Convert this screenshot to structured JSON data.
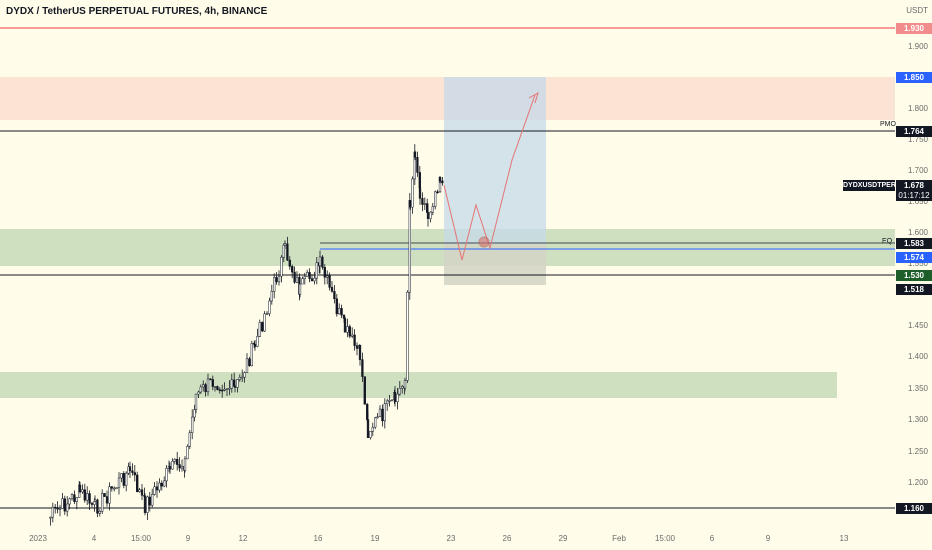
{
  "header": {
    "title": "DYDX / TetherUS PERPETUAL FUTURES, 4h, BINANCE"
  },
  "price_axis": {
    "currency": "USDT",
    "ticks": [
      "1.900",
      "1.800",
      "1.750",
      "1.700",
      "1.650",
      "1.600",
      "1.550",
      "1.450",
      "1.400",
      "1.350",
      "1.300",
      "1.250",
      "1.200"
    ],
    "tags": {
      "red_line": "1.930",
      "blue_box": "1.850",
      "pmo_line": "1.764",
      "last_price": "1.678",
      "countdown": "01:17:12",
      "eq_line": "1.583",
      "blue_line": "1.574",
      "green_tag": "1.530",
      "black_line": "1.518",
      "bottom_line": "1.160"
    }
  },
  "symbol_tag": "DYDXUSDTPERP",
  "line_labels": {
    "pmo": "PMO",
    "eq": "EQ"
  },
  "time_axis": [
    "2023",
    "4",
    "15:00",
    "9",
    "12",
    "16",
    "19",
    "23",
    "26",
    "29",
    "Feb",
    "15:00",
    "6",
    "9",
    "13"
  ],
  "colors": {
    "background": "#fffde9",
    "supply_zone": "#fce4d4",
    "demand_zone": "#cfe0c0",
    "up_candle": "#ffffff",
    "down_candle": "#131722",
    "projection": "#e57373",
    "rr_box": "#c6d9ea",
    "rr_stop": "#d4d3c4",
    "blue_line": "#2962ff",
    "red_line": "#f23645"
  },
  "chart_data": {
    "type": "candlestick",
    "symbol": "DYDX / TetherUS PERPETUAL FUTURES",
    "timeframe": "4h",
    "exchange": "BINANCE",
    "ylim": [
      1.14,
      1.96
    ],
    "y_ticks": [
      1.9,
      1.8,
      1.75,
      1.7,
      1.65,
      1.6,
      1.55,
      1.45,
      1.4,
      1.35,
      1.3,
      1.25,
      1.2
    ],
    "x_tick_labels": [
      "2023",
      "4",
      "15:00",
      "9",
      "12",
      "16",
      "19",
      "23",
      "26",
      "29",
      "Feb",
      "15:00",
      "6",
      "9",
      "13"
    ],
    "last_price": 1.678,
    "horizontal_levels": [
      {
        "price": 1.93,
        "label": "1.930"
      },
      {
        "price": 1.764,
        "label": "PMO"
      },
      {
        "price": 1.583,
        "label": "EQ"
      },
      {
        "price": 1.574,
        "label": "1.574"
      },
      {
        "price": 1.518,
        "label": "1.518"
      },
      {
        "price": 1.16,
        "label": "1.160"
      }
    ],
    "zones": [
      {
        "kind": "supply",
        "from": 1.78,
        "to": 1.85
      },
      {
        "kind": "demand",
        "from": 1.548,
        "to": 1.605
      },
      {
        "kind": "demand",
        "from": 1.335,
        "to": 1.375
      }
    ]
  }
}
